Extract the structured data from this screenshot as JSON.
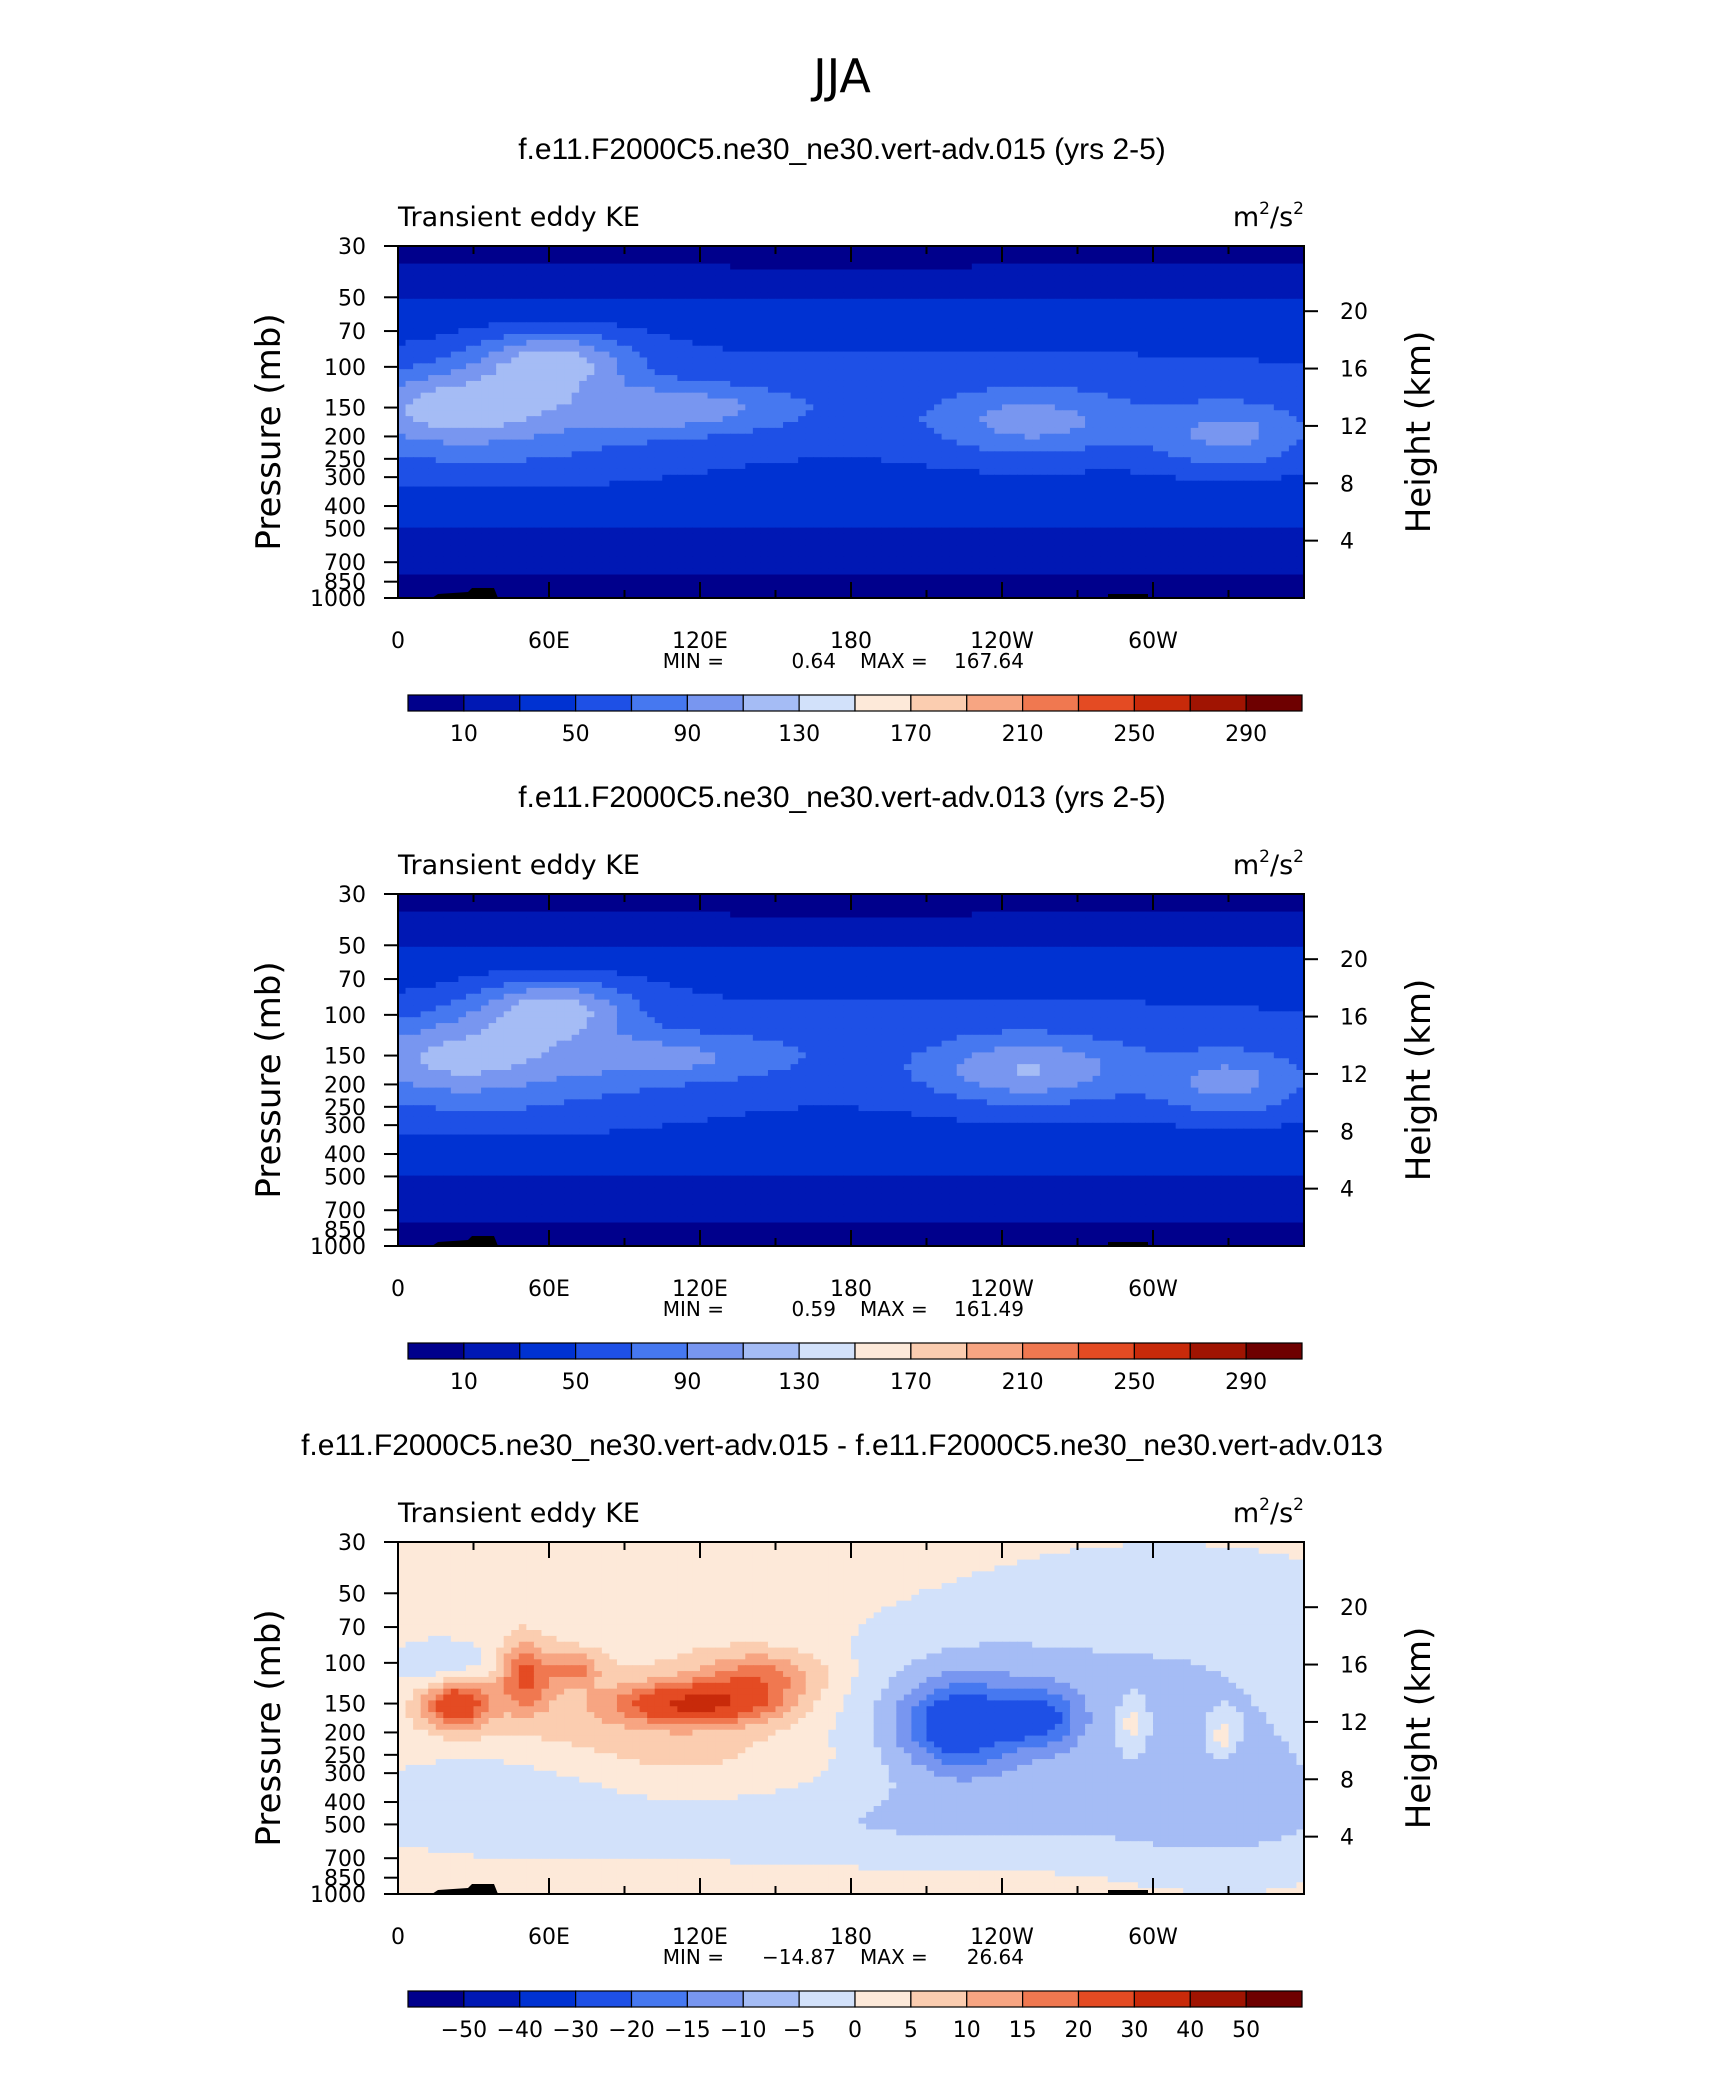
{
  "figure_title": "JJA",
  "chart_data": [
    {
      "type": "heatmap",
      "title": "f.e11.F2000C5.ne30_ne30.vert-adv.015 (yrs 2-5)",
      "left_label": "Transient eddy KE",
      "units_base": "m",
      "units_sup1": "2",
      "units_mid": "/s",
      "units_sup2": "2",
      "ylabel": "Pressure (mb)",
      "y2label": "Height (km)",
      "x_ticks": [
        "0",
        "60E",
        "120E",
        "180",
        "120W",
        "60W"
      ],
      "y_ticks": [
        "30",
        "50",
        "70",
        "100",
        "150",
        "200",
        "250",
        "300",
        "400",
        "500",
        "700",
        "850",
        "1000"
      ],
      "y2_ticks": [
        "20",
        "16",
        "12",
        "8",
        "4"
      ],
      "min_label": "MIN =",
      "min_value": "0.64",
      "max_label": "MAX =",
      "max_value": "167.64",
      "colorbar_labels": [
        "10",
        "50",
        "90",
        "130",
        "170",
        "210",
        "250",
        "290"
      ],
      "colorbar_colors": [
        "#00008c",
        "#0018b4",
        "#0032d2",
        "#1e50e6",
        "#4678f0",
        "#7896f0",
        "#a5bcf5",
        "#d2e1fa",
        "#fde9d9",
        "#fbcdb0",
        "#f7a582",
        "#f07850",
        "#e44b23",
        "#c82a0a",
        "#a01402",
        "#6e0000"
      ],
      "levels": [
        10,
        30,
        50,
        70,
        90,
        110,
        130,
        150,
        170,
        190,
        210,
        230,
        250,
        270,
        290
      ],
      "field_kind": "ke1"
    },
    {
      "type": "heatmap",
      "title": "f.e11.F2000C5.ne30_ne30.vert-adv.013 (yrs 2-5)",
      "left_label": "Transient eddy KE",
      "units_base": "m",
      "units_sup1": "2",
      "units_mid": "/s",
      "units_sup2": "2",
      "ylabel": "Pressure (mb)",
      "y2label": "Height (km)",
      "x_ticks": [
        "0",
        "60E",
        "120E",
        "180",
        "120W",
        "60W"
      ],
      "y_ticks": [
        "30",
        "50",
        "70",
        "100",
        "150",
        "200",
        "250",
        "300",
        "400",
        "500",
        "700",
        "850",
        "1000"
      ],
      "y2_ticks": [
        "20",
        "16",
        "12",
        "8",
        "4"
      ],
      "min_label": "MIN =",
      "min_value": "0.59",
      "max_label": "MAX =",
      "max_value": "161.49",
      "colorbar_labels": [
        "10",
        "50",
        "90",
        "130",
        "170",
        "210",
        "250",
        "290"
      ],
      "colorbar_colors": [
        "#00008c",
        "#0018b4",
        "#0032d2",
        "#1e50e6",
        "#4678f0",
        "#7896f0",
        "#a5bcf5",
        "#d2e1fa",
        "#fde9d9",
        "#fbcdb0",
        "#f7a582",
        "#f07850",
        "#e44b23",
        "#c82a0a",
        "#a01402",
        "#6e0000"
      ],
      "levels": [
        10,
        30,
        50,
        70,
        90,
        110,
        130,
        150,
        170,
        190,
        210,
        230,
        250,
        270,
        290
      ],
      "field_kind": "ke2"
    },
    {
      "type": "heatmap",
      "title": "f.e11.F2000C5.ne30_ne30.vert-adv.015 - f.e11.F2000C5.ne30_ne30.vert-adv.013",
      "left_label": "Transient eddy KE",
      "units_base": "m",
      "units_sup1": "2",
      "units_mid": "/s",
      "units_sup2": "2",
      "ylabel": "Pressure (mb)",
      "y2label": "Height (km)",
      "x_ticks": [
        "0",
        "60E",
        "120E",
        "180",
        "120W",
        "60W"
      ],
      "y_ticks": [
        "30",
        "50",
        "70",
        "100",
        "150",
        "200",
        "250",
        "300",
        "400",
        "500",
        "700",
        "850",
        "1000"
      ],
      "y2_ticks": [
        "20",
        "16",
        "12",
        "8",
        "4"
      ],
      "min_label": "MIN =",
      "min_value": "−14.87",
      "max_label": "MAX =",
      "max_value": "26.64",
      "colorbar_labels": [
        "−50",
        "−40",
        "−30",
        "−20",
        "−15",
        "−10",
        "−5",
        "0",
        "5",
        "10",
        "15",
        "20",
        "30",
        "40",
        "50"
      ],
      "colorbar_colors": [
        "#00008c",
        "#0018b4",
        "#0032d2",
        "#1e50e6",
        "#4678f0",
        "#7896f0",
        "#a5bcf5",
        "#d2e1fa",
        "#fde9d9",
        "#fbcdb0",
        "#f7a582",
        "#f07850",
        "#e44b23",
        "#c82a0a",
        "#a01402",
        "#6e0000"
      ],
      "levels": [
        -50,
        -40,
        -30,
        -20,
        -15,
        -10,
        -5,
        0,
        5,
        10,
        15,
        20,
        30,
        40,
        50
      ],
      "field_kind": "diff"
    }
  ]
}
